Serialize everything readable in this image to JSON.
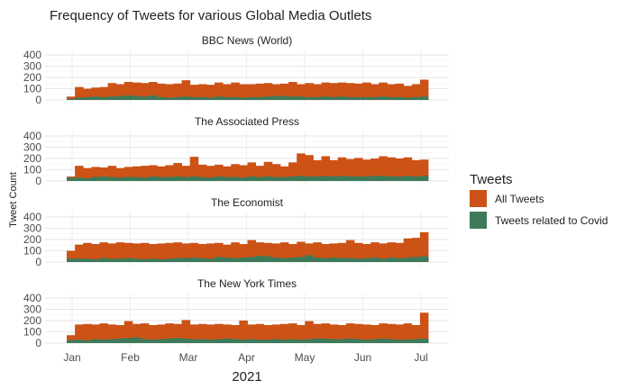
{
  "chart_data": {
    "type": "bar",
    "title": "Frequency of Tweets for various Global Media Outlets",
    "xlabel": "2021",
    "ylabel": "Tweet Count",
    "ylim": [
      0,
      400
    ],
    "yticks": [
      "400",
      "300",
      "200",
      "100",
      "0"
    ],
    "xticks": [
      "Jan",
      "Feb",
      "Mar",
      "Apr",
      "May",
      "Jun",
      "Jul"
    ],
    "grid": true,
    "legend": {
      "title": "Tweets",
      "position": "right",
      "entries": [
        "All Tweets",
        "Tweets related to Covid"
      ]
    },
    "colors": {
      "all": "#cc5216",
      "covid": "#3d7a5a"
    },
    "panels": [
      {
        "title": "BBC News (World)",
        "all": [
          30,
          115,
          100,
          110,
          115,
          150,
          140,
          160,
          155,
          150,
          160,
          145,
          140,
          145,
          175,
          135,
          140,
          135,
          155,
          140,
          155,
          140,
          140,
          145,
          150,
          140,
          145,
          160,
          140,
          150,
          140,
          155,
          150,
          155,
          150,
          145,
          155,
          140,
          155,
          140,
          145,
          125,
          140,
          180
        ],
        "covid": [
          10,
          20,
          25,
          30,
          25,
          30,
          35,
          40,
          35,
          30,
          40,
          25,
          20,
          25,
          30,
          25,
          25,
          20,
          30,
          25,
          25,
          20,
          25,
          25,
          30,
          35,
          35,
          30,
          30,
          25,
          25,
          30,
          25,
          30,
          25,
          25,
          25,
          25,
          30,
          25,
          25,
          20,
          25,
          30
        ]
      },
      {
        "title": "The Associated Press",
        "all": [
          40,
          135,
          115,
          125,
          120,
          135,
          115,
          125,
          130,
          135,
          140,
          130,
          140,
          160,
          135,
          215,
          145,
          135,
          145,
          130,
          150,
          140,
          165,
          135,
          170,
          150,
          130,
          165,
          245,
          230,
          185,
          220,
          185,
          210,
          195,
          205,
          190,
          200,
          220,
          210,
          200,
          210,
          185,
          190
        ],
        "covid": [
          30,
          30,
          25,
          35,
          40,
          35,
          30,
          35,
          35,
          30,
          40,
          35,
          35,
          40,
          35,
          40,
          35,
          30,
          40,
          35,
          35,
          30,
          40,
          35,
          40,
          35,
          35,
          40,
          45,
          40,
          40,
          45,
          40,
          45,
          40,
          40,
          40,
          45,
          45,
          40,
          40,
          45,
          40,
          45
        ]
      },
      {
        "title": "The Economist",
        "all": [
          100,
          155,
          170,
          160,
          175,
          165,
          175,
          170,
          165,
          170,
          160,
          165,
          170,
          175,
          165,
          170,
          160,
          165,
          170,
          155,
          175,
          160,
          195,
          175,
          170,
          165,
          175,
          160,
          180,
          165,
          175,
          160,
          165,
          170,
          195,
          170,
          160,
          175,
          165,
          175,
          170,
          210,
          215,
          265
        ],
        "covid": [
          30,
          30,
          30,
          25,
          35,
          30,
          30,
          35,
          30,
          25,
          30,
          25,
          30,
          35,
          35,
          40,
          35,
          30,
          45,
          40,
          35,
          40,
          45,
          55,
          50,
          40,
          35,
          40,
          45,
          60,
          40,
          35,
          40,
          35,
          35,
          30,
          35,
          40,
          30,
          40,
          35,
          40,
          45,
          50
        ]
      },
      {
        "title": "The New York Times",
        "all": [
          70,
          165,
          170,
          165,
          175,
          165,
          160,
          195,
          170,
          175,
          160,
          165,
          175,
          170,
          205,
          165,
          170,
          165,
          170,
          165,
          160,
          200,
          165,
          170,
          160,
          165,
          170,
          175,
          160,
          195,
          170,
          175,
          165,
          160,
          175,
          170,
          165,
          160,
          175,
          170,
          165,
          175,
          160,
          270
        ],
        "covid": [
          25,
          30,
          25,
          35,
          30,
          35,
          40,
          45,
          50,
          35,
          30,
          35,
          40,
          45,
          40,
          35,
          35,
          30,
          35,
          40,
          35,
          30,
          35,
          30,
          30,
          35,
          30,
          35,
          30,
          35,
          40,
          40,
          35,
          35,
          40,
          35,
          30,
          35,
          40,
          35,
          30,
          30,
          35,
          40
        ]
      }
    ]
  }
}
